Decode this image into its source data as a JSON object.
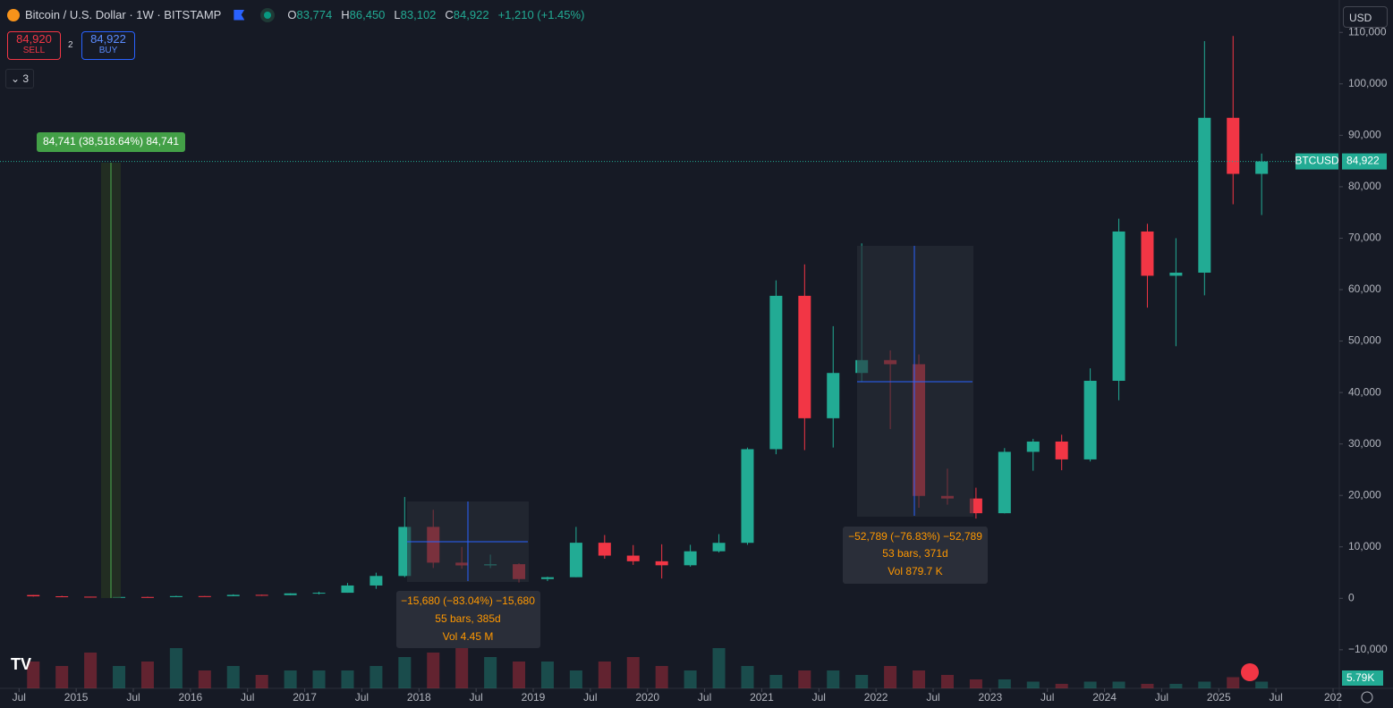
{
  "header": {
    "title": "Bitcoin / U.S. Dollar · 1W · BITSTAMP",
    "ohlc": [
      {
        "key": "O",
        "value": "83,774"
      },
      {
        "key": "H",
        "value": "86,450"
      },
      {
        "key": "L",
        "value": "83,102"
      },
      {
        "key": "C",
        "value": "84,922"
      }
    ],
    "change": "+1,210 (+1.45%)"
  },
  "trade": {
    "sell_price": "84,920",
    "sell": "SELL",
    "spread": "2",
    "buy_price": "84,922",
    "buy": "BUY"
  },
  "indicators_count": "3",
  "currency": "USD",
  "chart_data": {
    "type": "candlestick",
    "x": [
      "2014-07",
      "2014-10",
      "2015-01",
      "2015-04",
      "2015-07",
      "2015-10",
      "2016-01",
      "2016-04",
      "2016-07",
      "2016-10",
      "2017-01",
      "2017-04",
      "2017-07",
      "2017-10",
      "2018-01",
      "2018-04",
      "2018-07",
      "2018-10",
      "2019-01",
      "2019-04",
      "2019-07",
      "2019-10",
      "2020-01",
      "2020-04",
      "2020-07",
      "2020-10",
      "2021-01",
      "2021-04",
      "2021-07",
      "2021-10",
      "2022-01",
      "2022-04",
      "2022-07",
      "2022-10",
      "2023-01",
      "2023-04",
      "2023-07",
      "2023-10",
      "2024-01",
      "2024-04",
      "2024-07",
      "2024-10",
      "2025-01",
      "2025-04"
    ],
    "open": [
      640,
      390,
      320,
      245,
      263,
      236,
      430,
      416,
      673,
      610,
      960,
      1080,
      2490,
      4340,
      13880,
      6930,
      6390,
      6630,
      3740,
      4100,
      10800,
      8300,
      7200,
      6420,
      9140,
      10780,
      28990,
      58800,
      35000,
      43800,
      46300,
      45500,
      19900,
      19400,
      16540,
      28470,
      30470,
      27000,
      42280,
      71300,
      62700,
      63300,
      93400,
      82500
    ],
    "high": [
      650,
      480,
      320,
      265,
      315,
      500,
      440,
      780,
      700,
      980,
      1290,
      2980,
      4980,
      19700,
      17200,
      9990,
      8500,
      6800,
      4200,
      13880,
      12300,
      10350,
      10500,
      10400,
      12470,
      29300,
      61800,
      64900,
      52900,
      69000,
      48200,
      47400,
      25200,
      21500,
      29200,
      31000,
      31800,
      44700,
      73800,
      72800,
      70000,
      108300,
      109300,
      86450
    ],
    "low": [
      340,
      310,
      165,
      220,
      200,
      235,
      360,
      410,
      470,
      600,
      750,
      1080,
      1840,
      4100,
      5900,
      5750,
      5880,
      3120,
      3350,
      4100,
      7700,
      6500,
      3850,
      6150,
      8900,
      10400,
      28000,
      28800,
      29300,
      42000,
      32900,
      17600,
      18200,
      15500,
      16500,
      24800,
      24900,
      26600,
      38500,
      56500,
      49000,
      58900,
      76600,
      74500
    ],
    "close": [
      390,
      320,
      245,
      263,
      236,
      430,
      416,
      673,
      610,
      960,
      1080,
      2490,
      4340,
      13880,
      6930,
      6390,
      6630,
      3740,
      4100,
      10800,
      8300,
      7200,
      6420,
      9140,
      10780,
      28990,
      58800,
      35000,
      43800,
      46300,
      45500,
      19900,
      19400,
      16540,
      28470,
      30470,
      27000,
      42280,
      71300,
      62700,
      63300,
      93400,
      82500,
      84922
    ],
    "volume": [
      60,
      50,
      80,
      50,
      60,
      90,
      40,
      50,
      30,
      40,
      40,
      40,
      50,
      70,
      80,
      90,
      70,
      60,
      60,
      40,
      60,
      70,
      50,
      40,
      90,
      50,
      30,
      40,
      40,
      30,
      50,
      40,
      30,
      20,
      20,
      15,
      10,
      15,
      15,
      10,
      10,
      15,
      25,
      15
    ],
    "volume_lim": [
      0,
      400
    ],
    "up_color": "#22ab94",
    "down_color": "#f23645",
    "xlim": [
      "2014-05",
      "2026-01"
    ],
    "xticks": [
      {
        "value": "2014-07",
        "label": "Jul"
      },
      {
        "value": "2015-01",
        "label": "2015"
      },
      {
        "value": "2015-07",
        "label": "Jul"
      },
      {
        "value": "2016-01",
        "label": "2016"
      },
      {
        "value": "2016-07",
        "label": "Jul"
      },
      {
        "value": "2017-01",
        "label": "2017"
      },
      {
        "value": "2017-07",
        "label": "Jul"
      },
      {
        "value": "2018-01",
        "label": "2018"
      },
      {
        "value": "2018-07",
        "label": "Jul"
      },
      {
        "value": "2019-01",
        "label": "2019"
      },
      {
        "value": "2019-07",
        "label": "Jul"
      },
      {
        "value": "2020-01",
        "label": "2020"
      },
      {
        "value": "2020-07",
        "label": "Jul"
      },
      {
        "value": "2021-01",
        "label": "2021"
      },
      {
        "value": "2021-07",
        "label": "Jul"
      },
      {
        "value": "2022-01",
        "label": "2022"
      },
      {
        "value": "2022-07",
        "label": "Jul"
      },
      {
        "value": "2023-01",
        "label": "2023"
      },
      {
        "value": "2023-07",
        "label": "Jul"
      },
      {
        "value": "2024-01",
        "label": "2024"
      },
      {
        "value": "2024-07",
        "label": "Jul"
      },
      {
        "value": "2025-01",
        "label": "2025"
      },
      {
        "value": "2025-07",
        "label": "Jul"
      },
      {
        "value": "2026-01",
        "label": "202"
      }
    ],
    "ylim": [
      -17500,
      116300
    ],
    "yticks": [
      {
        "value": -10000,
        "label": "−10,000"
      },
      0,
      {
        "value": 10000,
        "label": "10,000"
      },
      {
        "value": 20000,
        "label": "20,000"
      },
      {
        "value": 30000,
        "label": "30,000"
      },
      {
        "value": 40000,
        "label": "40,000"
      },
      {
        "value": 50000,
        "label": "50,000"
      },
      {
        "value": 60000,
        "label": "60,000"
      },
      {
        "value": 70000,
        "label": "70,000"
      },
      {
        "value": 80000,
        "label": "80,000"
      },
      {
        "value": 90000,
        "label": "90,000"
      },
      {
        "value": 100000,
        "label": "100,000"
      },
      {
        "value": 110000,
        "label": "110,000"
      }
    ],
    "symbol": "BTCUSD",
    "last_price": {
      "value": 84922,
      "label": "84,922"
    },
    "last_volume": "5.79K",
    "annotations": {
      "rise": "84,741 (38,518.64%) 84,741",
      "drop_2018": [
        "−15,680 (−83.04%) −15,680",
        "55 bars, 385d",
        "Vol 4.45 M"
      ],
      "drop_2022": [
        "−52,789 (−76.83%) −52,789",
        "53 bars, 371d",
        "Vol 879.7 K"
      ]
    }
  }
}
